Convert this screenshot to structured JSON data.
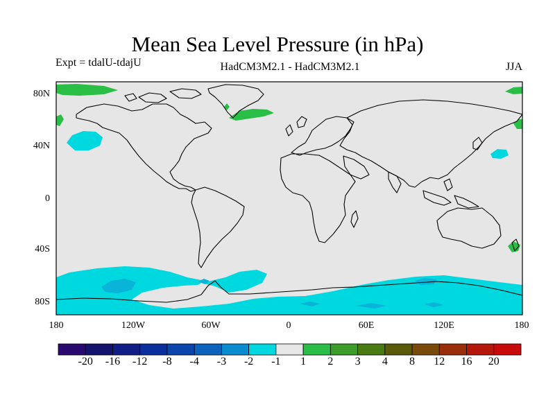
{
  "title": "Mean Sea Level Pressure (in hPa)",
  "experiment": "Expt = tdalU-tdajU",
  "models": "HadCM3M2.1 - HadCM3M2.1",
  "season": "JJA",
  "lat_ticks": [
    "80N",
    "40N",
    "0",
    "40S",
    "80S"
  ],
  "lon_ticks": [
    "180",
    "120W",
    "60W",
    "0",
    "60E",
    "120E",
    "180"
  ],
  "colorbar": {
    "labels": [
      "-20",
      "-16",
      "-12",
      "-8",
      "-4",
      "-3",
      "-2",
      "-1",
      "1",
      "2",
      "3",
      "4",
      "8",
      "12",
      "16",
      "20"
    ],
    "colors": [
      "#2a0a6e",
      "#14146e",
      "#101e86",
      "#0a2e9c",
      "#0a46ac",
      "#0a62bc",
      "#0a8cd0",
      "#00d8e0",
      "#e6e6e6",
      "#2abe46",
      "#3c9c2a",
      "#4a7a12",
      "#5a5a0a",
      "#7a4a0a",
      "#9a2e0a",
      "#b4160a",
      "#c80a0a"
    ]
  },
  "map_colors": {
    "neutral": "#e6e6e6",
    "negative_light": "#00d8e0",
    "negative_mid": "#0ab4d8",
    "positive": "#2abe46"
  }
}
